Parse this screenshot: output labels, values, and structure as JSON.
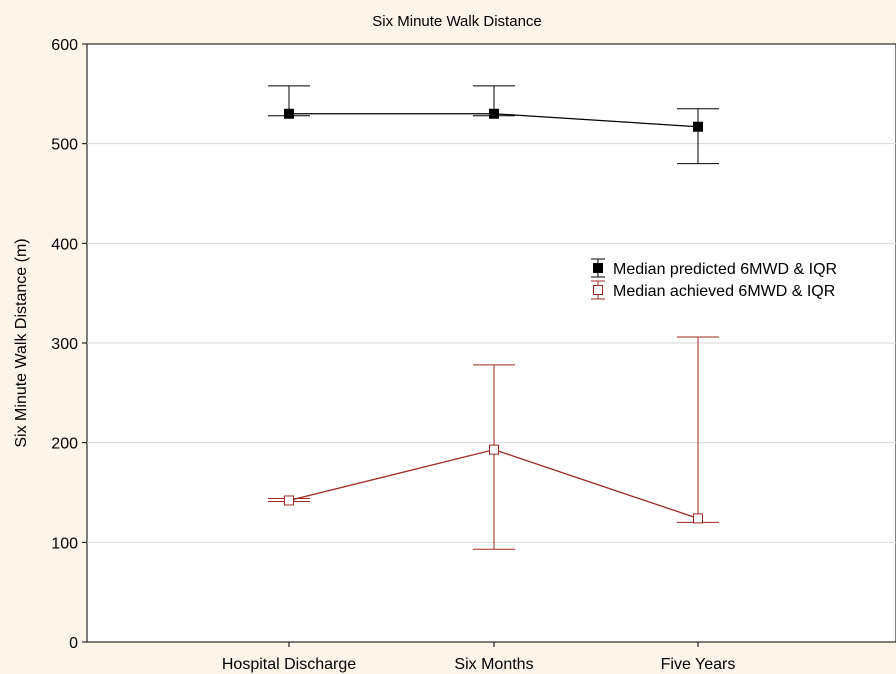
{
  "chart_data": {
    "type": "line",
    "title": "Six Minute Walk Distance",
    "xlabel": "",
    "ylabel": "Six Minute Walk Distance (m)",
    "ylim": [
      0,
      600
    ],
    "yticks": [
      0,
      100,
      200,
      300,
      400,
      500,
      600
    ],
    "grid": true,
    "legend_position": "right",
    "categories": [
      "Hospital Discharge",
      "Six Months",
      "Five Years"
    ],
    "series": [
      {
        "name": "Median predicted 6MWD & IQR",
        "color": "#000000",
        "marker": "filled-square",
        "values": [
          530,
          530,
          517
        ],
        "iqr_low": [
          528,
          528,
          480
        ],
        "iqr_high": [
          558,
          558,
          535
        ]
      },
      {
        "name": "Median achieved 6MWD & IQR",
        "color": "#9b2a22",
        "marker": "open-square",
        "values": [
          142,
          193,
          124
        ],
        "iqr_low": [
          141,
          93,
          120
        ],
        "iqr_high": [
          144,
          278,
          306
        ]
      }
    ]
  }
}
